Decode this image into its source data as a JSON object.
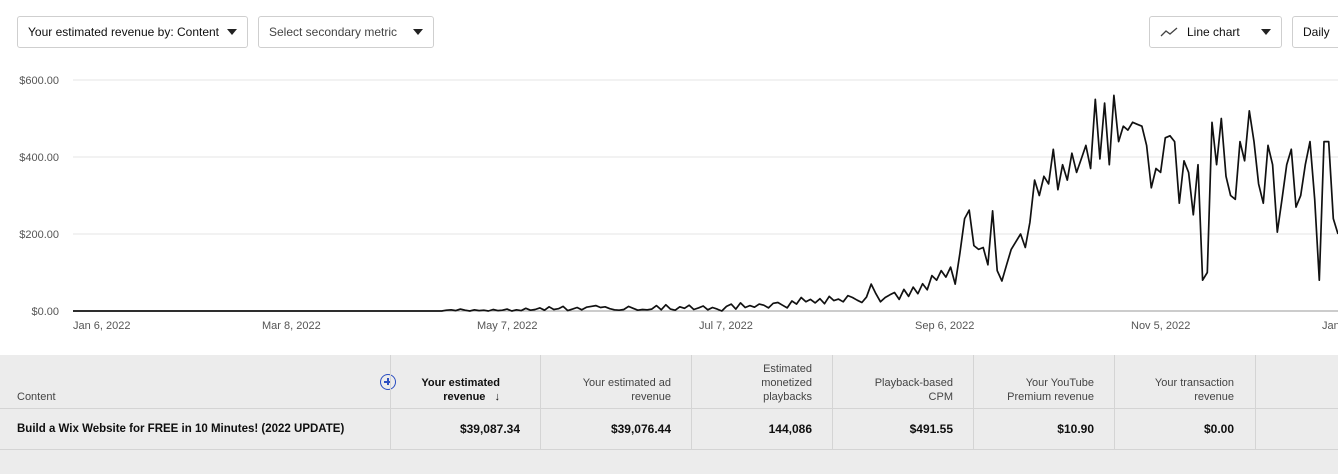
{
  "toolbar": {
    "primary_metric": "Your estimated revenue by: Content",
    "secondary_metric": "Select secondary metric",
    "chart_type": "Line chart",
    "granularity": "Daily"
  },
  "chart_data": {
    "type": "line",
    "y_ticks": [
      "$600.00",
      "$400.00",
      "$200.00",
      "$0.00"
    ],
    "y_tick_values": [
      600,
      400,
      200,
      0
    ],
    "ylim": [
      0,
      600
    ],
    "x_ticks": [
      "Jan 6, 2022",
      "Mar 8, 2022",
      "May 7, 2022",
      "Jul 7, 2022",
      "Sep 6, 2022",
      "Nov 5, 2022",
      "Jan"
    ],
    "grid": true,
    "series": [
      {
        "values": [
          0,
          0,
          0,
          0,
          0,
          0,
          0,
          0,
          0,
          0,
          0,
          0,
          0,
          0,
          0,
          0,
          0,
          0,
          0,
          0,
          0,
          0,
          0,
          0,
          0,
          0,
          0,
          0,
          0,
          0,
          0,
          0,
          0,
          0,
          0,
          0,
          0,
          0,
          0,
          0,
          0,
          0,
          0,
          0,
          0,
          0,
          0,
          0,
          0,
          0,
          0,
          0,
          0,
          0,
          0,
          0,
          0,
          0,
          0,
          0,
          0,
          0,
          0,
          0,
          0,
          0,
          0,
          0,
          0,
          0,
          0,
          0,
          0,
          0,
          0,
          0,
          0,
          0,
          0,
          0,
          2,
          3,
          1,
          5,
          2,
          0,
          3,
          1,
          2,
          0,
          4,
          1,
          2,
          5,
          0,
          3,
          1,
          7,
          2,
          4,
          8,
          2,
          11,
          4,
          6,
          12,
          1,
          5,
          9,
          3,
          10,
          12,
          14,
          9,
          11,
          6,
          3,
          2,
          4,
          12,
          7,
          2,
          4,
          3,
          5,
          14,
          3,
          16,
          5,
          2,
          11,
          7,
          15,
          4,
          8,
          13,
          3,
          9,
          5,
          0,
          12,
          18,
          5,
          21,
          9,
          14,
          10,
          18,
          15,
          8,
          20,
          22,
          15,
          8,
          26,
          18,
          35,
          24,
          30,
          21,
          32,
          19,
          38,
          27,
          31,
          24,
          40,
          35,
          28,
          22,
          36,
          70,
          45,
          24,
          35,
          42,
          48,
          30,
          56,
          38,
          62,
          45,
          71,
          55,
          92,
          80,
          105,
          88,
          114,
          70,
          150,
          240,
          262,
          170,
          160,
          165,
          120,
          260,
          105,
          78,
          120,
          160,
          180,
          200,
          165,
          230,
          340,
          300,
          350,
          330,
          420,
          315,
          380,
          340,
          410,
          360,
          395,
          430,
          370,
          550,
          395,
          540,
          380,
          560,
          440,
          480,
          470,
          490,
          485,
          480,
          430,
          320,
          370,
          360,
          450,
          455,
          440,
          280,
          390,
          360,
          250,
          380,
          80,
          100,
          490,
          380,
          500,
          350,
          300,
          290,
          440,
          390,
          520,
          440,
          330,
          280,
          430,
          380,
          205,
          290,
          380,
          420,
          270,
          300,
          380,
          440,
          290,
          80,
          440,
          440,
          240,
          200
        ]
      }
    ]
  },
  "table": {
    "headers": {
      "content": "Content",
      "est_revenue_1": "Your estimated",
      "est_revenue_2": "revenue",
      "sort_arrow": "↓",
      "ad_revenue_1": "Your estimated ad",
      "ad_revenue_2": "revenue",
      "playbacks_1": "Estimated",
      "playbacks_2": "monetized",
      "playbacks_3": "playbacks",
      "cpm_1": "Playback-based",
      "cpm_2": "CPM",
      "premium_1": "Your YouTube",
      "premium_2": "Premium revenue",
      "transaction_1": "Your transaction",
      "transaction_2": "revenue"
    },
    "row": {
      "title": "Build a Wix Website for FREE in 10 Minutes! (2022 UPDATE)",
      "est_revenue": "$39,087.34",
      "ad_revenue": "$39,076.44",
      "playbacks": "144,086",
      "cpm": "$491.55",
      "premium": "$10.90",
      "transaction": "$0.00"
    }
  }
}
